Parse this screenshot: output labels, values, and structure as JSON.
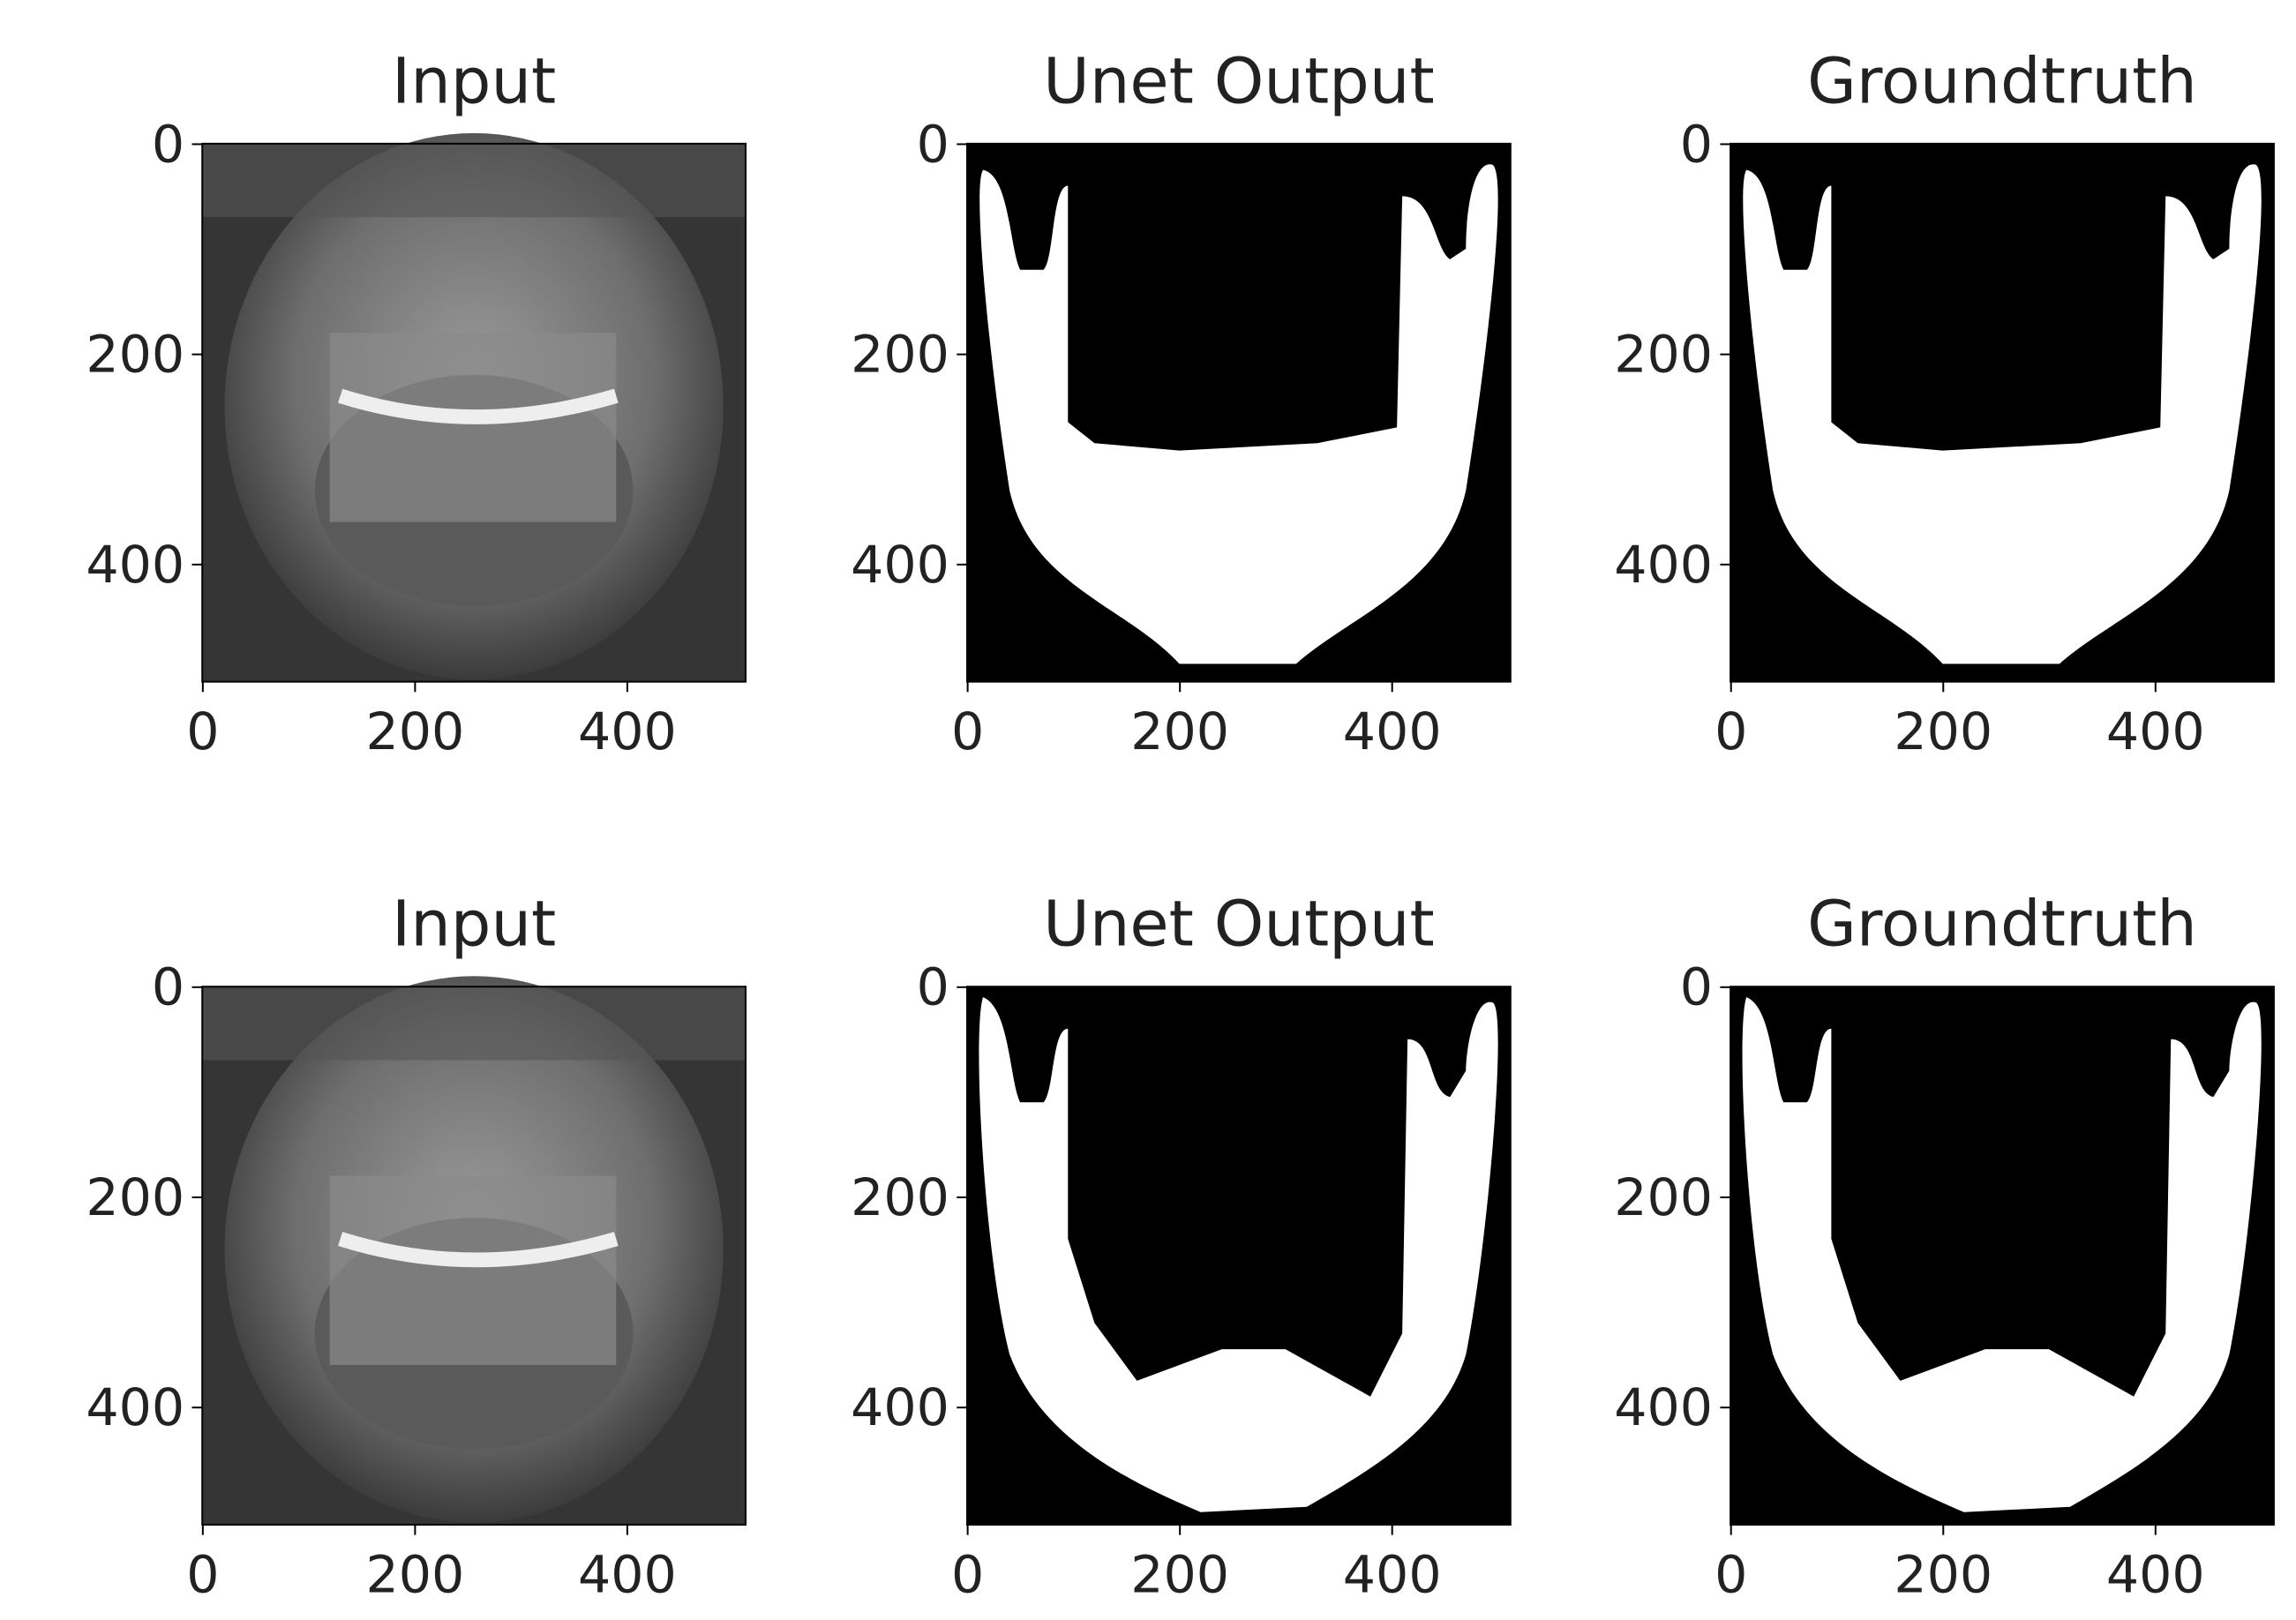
{
  "chart_data": [
    {
      "type": "image",
      "title": "Input",
      "xlim": [
        -0.5,
        511.5
      ],
      "ylim": [
        511.5,
        -0.5
      ],
      "xticks": [
        0,
        200,
        400
      ],
      "yticks": [
        0,
        200,
        400
      ]
    },
    {
      "type": "image",
      "title": "Unet Output",
      "xlim": [
        -0.5,
        511.5
      ],
      "ylim": [
        511.5,
        -0.5
      ],
      "xticks": [
        0,
        200,
        400
      ],
      "yticks": [
        0,
        200,
        400
      ]
    },
    {
      "type": "image",
      "title": "Groundtruth",
      "xlim": [
        -0.5,
        511.5
      ],
      "ylim": [
        511.5,
        -0.5
      ],
      "xticks": [
        0,
        200,
        400
      ],
      "yticks": [
        0,
        200,
        400
      ]
    },
    {
      "type": "image",
      "title": "Input",
      "xlim": [
        -0.5,
        511.5
      ],
      "ylim": [
        511.5,
        -0.5
      ],
      "xticks": [
        0,
        200,
        400
      ],
      "yticks": [
        0,
        200,
        400
      ]
    },
    {
      "type": "image",
      "title": "Unet Output",
      "xlim": [
        -0.5,
        511.5
      ],
      "ylim": [
        511.5,
        -0.5
      ],
      "xticks": [
        0,
        200,
        400
      ],
      "yticks": [
        0,
        200,
        400
      ]
    },
    {
      "type": "image",
      "title": "Groundtruth",
      "xlim": [
        -0.5,
        511.5
      ],
      "ylim": [
        511.5,
        -0.5
      ],
      "xticks": [
        0,
        200,
        400
      ],
      "yticks": [
        0,
        200,
        400
      ]
    }
  ]
}
